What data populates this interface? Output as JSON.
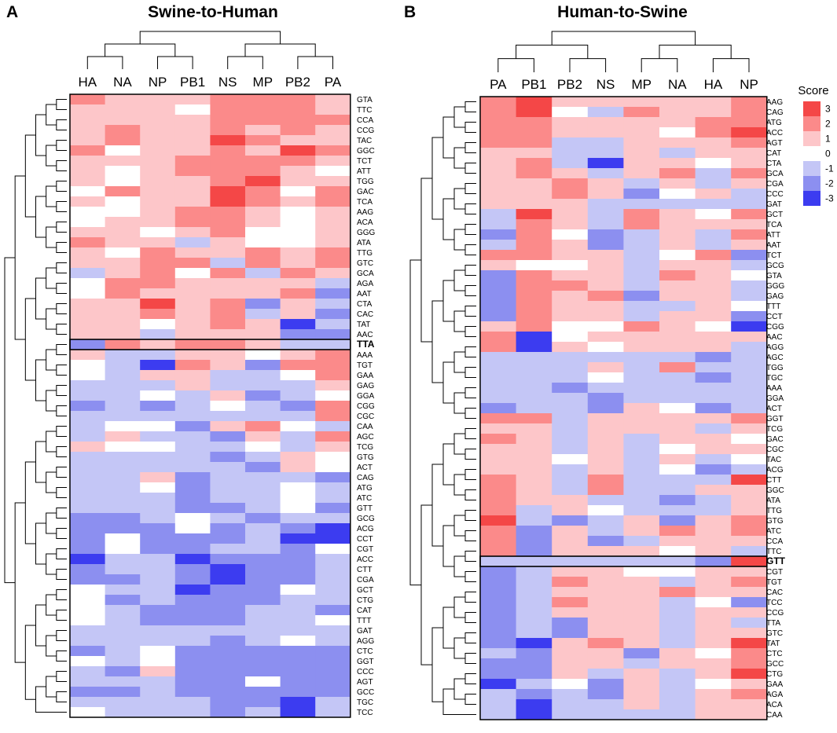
{
  "colors": {
    "pos3": "#f44747",
    "pos2": "#fb8a8a",
    "pos1": "#fdc6c9",
    "zero": "#ffffff",
    "neg1": "#c4c6f6",
    "neg2": "#8c8ff0",
    "neg3": "#3c3cf0",
    "border": "#000000",
    "tree": "#000000"
  },
  "chart_data": [
    {
      "type": "heatmap",
      "panel_label": "A",
      "title": "Swine-to-Human",
      "columns": [
        "HA",
        "NA",
        "NP",
        "PB1",
        "NS",
        "MP",
        "PB2",
        "PA"
      ],
      "highlight": "TTA",
      "rows": [
        "GTA",
        "TTC",
        "CCA",
        "CCG",
        "TAC",
        "GGC",
        "TCT",
        "ATT",
        "TGG",
        "GAC",
        "TCA",
        "AAG",
        "ACA",
        "GGG",
        "ATA",
        "TTG",
        "GTC",
        "GCA",
        "AGA",
        "AAT",
        "CTA",
        "CAC",
        "TAT",
        "AAC",
        "TTA",
        "AAA",
        "TGT",
        "GAA",
        "GAG",
        "GGA",
        "CGG",
        "CGC",
        "CAA",
        "AGC",
        "TCG",
        "GTG",
        "ACT",
        "CAG",
        "ATG",
        "ATC",
        "GTT",
        "GCG",
        "ACG",
        "CCT",
        "CGT",
        "ACC",
        "CTT",
        "CGA",
        "GCT",
        "CTG",
        "CAT",
        "TTT",
        "GAT",
        "AGG",
        "CTC",
        "GGT",
        "CCC",
        "AGT",
        "GCC",
        "TGC",
        "TCC"
      ],
      "values": [
        [
          2,
          1,
          1,
          1,
          2,
          2,
          2,
          1
        ],
        [
          1,
          1,
          1,
          0,
          2,
          2,
          2,
          1
        ],
        [
          1,
          1,
          1,
          1,
          2,
          2,
          2,
          2
        ],
        [
          1,
          2,
          1,
          1,
          2,
          1,
          2,
          1
        ],
        [
          1,
          2,
          1,
          1,
          3,
          2,
          1,
          1
        ],
        [
          2,
          0,
          1,
          1,
          2,
          1,
          3,
          2
        ],
        [
          1,
          1,
          1,
          2,
          2,
          2,
          2,
          1
        ],
        [
          1,
          0,
          1,
          2,
          2,
          2,
          1,
          0
        ],
        [
          1,
          0,
          1,
          1,
          2,
          3,
          1,
          1
        ],
        [
          0,
          2,
          1,
          1,
          3,
          2,
          0,
          2
        ],
        [
          1,
          0,
          1,
          1,
          3,
          2,
          1,
          2
        ],
        [
          0,
          0,
          1,
          2,
          2,
          1,
          0,
          1
        ],
        [
          0,
          1,
          1,
          2,
          2,
          1,
          0,
          1
        ],
        [
          1,
          1,
          0,
          1,
          2,
          0,
          0,
          1
        ],
        [
          2,
          1,
          1,
          -1,
          1,
          0,
          0,
          1
        ],
        [
          1,
          0,
          2,
          1,
          1,
          2,
          1,
          2
        ],
        [
          1,
          1,
          2,
          2,
          -1,
          2,
          1,
          2
        ],
        [
          -1,
          1,
          2,
          0,
          2,
          -1,
          2,
          1
        ],
        [
          0,
          2,
          2,
          1,
          1,
          1,
          1,
          -1
        ],
        [
          0,
          2,
          1,
          1,
          1,
          1,
          2,
          -2
        ],
        [
          1,
          1,
          3,
          1,
          2,
          -2,
          1,
          -1
        ],
        [
          1,
          1,
          2,
          1,
          2,
          -1,
          1,
          -2
        ],
        [
          1,
          1,
          0,
          1,
          2,
          1,
          -3,
          -1
        ],
        [
          1,
          1,
          -1,
          1,
          1,
          1,
          -2,
          -2
        ],
        [
          -2,
          2,
          1,
          2,
          2,
          1,
          -1,
          -1
        ],
        [
          1,
          -1,
          -1,
          1,
          1,
          0,
          1,
          2
        ],
        [
          0,
          -1,
          -3,
          2,
          1,
          -2,
          2,
          2
        ],
        [
          0,
          -1,
          1,
          1,
          -1,
          -1,
          0,
          2
        ],
        [
          -1,
          -1,
          -1,
          1,
          -1,
          -1,
          -1,
          1
        ],
        [
          -1,
          -1,
          0,
          -1,
          1,
          -2,
          -1,
          0
        ],
        [
          -2,
          -1,
          -2,
          -1,
          0,
          -1,
          -2,
          2
        ],
        [
          -1,
          -1,
          -1,
          -1,
          -1,
          -1,
          -1,
          2
        ],
        [
          -1,
          0,
          0,
          -2,
          1,
          2,
          0,
          -1
        ],
        [
          -1,
          1,
          -1,
          -1,
          -2,
          1,
          -1,
          2
        ],
        [
          1,
          0,
          0,
          -1,
          -1,
          0,
          -1,
          1
        ],
        [
          -1,
          -1,
          -1,
          -1,
          -2,
          -1,
          1,
          0
        ],
        [
          -1,
          -1,
          -1,
          -1,
          -1,
          -2,
          1,
          0
        ],
        [
          -1,
          -1,
          1,
          -2,
          -1,
          -1,
          -1,
          -2
        ],
        [
          -1,
          -1,
          0,
          -2,
          -1,
          -1,
          0,
          -1
        ],
        [
          -1,
          -1,
          -1,
          -2,
          -1,
          -1,
          0,
          -1
        ],
        [
          -1,
          -1,
          -1,
          -2,
          -2,
          -1,
          0,
          -2
        ],
        [
          -2,
          -2,
          -1,
          0,
          -1,
          -2,
          -1,
          -1
        ],
        [
          -2,
          -2,
          -2,
          0,
          -2,
          -1,
          -2,
          -3
        ],
        [
          -2,
          0,
          -2,
          -2,
          -2,
          -1,
          -3,
          -3
        ],
        [
          -2,
          0,
          -2,
          -2,
          -1,
          -1,
          -2,
          0
        ],
        [
          -3,
          -1,
          -1,
          -3,
          -2,
          -2,
          -2,
          -1
        ],
        [
          -2,
          -1,
          -1,
          -2,
          -3,
          -2,
          -2,
          -1
        ],
        [
          -2,
          -2,
          -1,
          -2,
          -3,
          -2,
          -2,
          -1
        ],
        [
          0,
          -1,
          -1,
          -3,
          -2,
          -2,
          0,
          -1
        ],
        [
          0,
          -2,
          -1,
          -2,
          -2,
          -2,
          -1,
          -1
        ],
        [
          0,
          -1,
          -2,
          -2,
          -2,
          -1,
          -1,
          -2
        ],
        [
          0,
          -1,
          -2,
          -2,
          -2,
          -1,
          -1,
          0
        ],
        [
          -1,
          -1,
          -1,
          -1,
          -1,
          -1,
          -1,
          -1
        ],
        [
          -1,
          -1,
          -1,
          -1,
          -2,
          -1,
          0,
          -1
        ],
        [
          -2,
          -1,
          0,
          -2,
          -2,
          -2,
          -2,
          -2
        ],
        [
          0,
          -1,
          0,
          -2,
          -2,
          -2,
          -2,
          -2
        ],
        [
          -1,
          -2,
          1,
          -2,
          -2,
          -2,
          -2,
          -2
        ],
        [
          -1,
          -1,
          -1,
          -2,
          -2,
          0,
          -2,
          -2
        ],
        [
          -2,
          -2,
          -1,
          -2,
          -2,
          -2,
          -2,
          -2
        ],
        [
          -1,
          -1,
          -1,
          -1,
          -2,
          -2,
          -3,
          -1
        ],
        [
          0,
          -1,
          -1,
          -1,
          -2,
          -1,
          -3,
          -1
        ]
      ]
    },
    {
      "type": "heatmap",
      "panel_label": "B",
      "title": "Human-to-Swine",
      "columns": [
        "PA",
        "PB1",
        "PB2",
        "NS",
        "MP",
        "NA",
        "HA",
        "NP"
      ],
      "highlight": "GTT",
      "legend_title": "Score",
      "legend_values": [
        3,
        2,
        1,
        0,
        -1,
        -2,
        -3
      ],
      "rows": [
        "AAG",
        "CAG",
        "ATG",
        "ACC",
        "AGT",
        "CAT",
        "CTA",
        "GCA",
        "CGA",
        "CCC",
        "GAT",
        "GCT",
        "TCA",
        "ATT",
        "AAT",
        "TCT",
        "GCG",
        "GTA",
        "GGG",
        "GAG",
        "TTT",
        "CCT",
        "CGG",
        "AAC",
        "AGG",
        "AGC",
        "TGG",
        "TGC",
        "AAA",
        "GGA",
        "ACT",
        "GGT",
        "TCG",
        "GAC",
        "CGC",
        "TAC",
        "ACG",
        "CTT",
        "GGC",
        "ATA",
        "TTG",
        "GTG",
        "ATC",
        "CCA",
        "TTC",
        "GTT",
        "CGT",
        "TGT",
        "CAC",
        "TCC",
        "CCG",
        "TTA",
        "GTC",
        "TAT",
        "CTC",
        "GCC",
        "CTG",
        "GAA",
        "AGA",
        "ACA",
        "CAA"
      ],
      "values": [
        [
          2,
          3,
          1,
          1,
          1,
          1,
          1,
          2
        ],
        [
          2,
          3,
          0,
          -1,
          2,
          1,
          1,
          2
        ],
        [
          2,
          2,
          1,
          1,
          1,
          1,
          2,
          2
        ],
        [
          2,
          2,
          1,
          1,
          1,
          0,
          2,
          3
        ],
        [
          2,
          2,
          -1,
          -1,
          1,
          1,
          1,
          2
        ],
        [
          1,
          1,
          -1,
          -1,
          1,
          -1,
          1,
          1
        ],
        [
          1,
          2,
          -1,
          -3,
          1,
          1,
          0,
          1
        ],
        [
          1,
          2,
          1,
          -1,
          1,
          2,
          -1,
          2
        ],
        [
          1,
          1,
          2,
          1,
          -1,
          1,
          -1,
          1
        ],
        [
          1,
          1,
          2,
          1,
          -2,
          0,
          1,
          -1
        ],
        [
          1,
          1,
          1,
          -1,
          -1,
          -1,
          -1,
          -1
        ],
        [
          -1,
          3,
          1,
          -1,
          2,
          1,
          0,
          2
        ],
        [
          -1,
          2,
          1,
          -1,
          2,
          1,
          1,
          1
        ],
        [
          -2,
          2,
          0,
          -2,
          -1,
          1,
          -1,
          2
        ],
        [
          -1,
          2,
          1,
          -2,
          -1,
          1,
          -1,
          1
        ],
        [
          2,
          2,
          1,
          1,
          -1,
          0,
          2,
          -2
        ],
        [
          1,
          0,
          0,
          1,
          -1,
          1,
          1,
          -1
        ],
        [
          -2,
          2,
          1,
          1,
          -1,
          2,
          1,
          0
        ],
        [
          -2,
          2,
          2,
          1,
          -1,
          1,
          1,
          -1
        ],
        [
          -2,
          2,
          1,
          2,
          -2,
          1,
          1,
          -1
        ],
        [
          -2,
          2,
          1,
          1,
          -1,
          -1,
          1,
          0
        ],
        [
          -2,
          2,
          1,
          1,
          -1,
          1,
          1,
          -2
        ],
        [
          1,
          2,
          0,
          0,
          2,
          1,
          0,
          -3
        ],
        [
          2,
          -3,
          0,
          1,
          1,
          1,
          1,
          1
        ],
        [
          2,
          -3,
          1,
          0,
          1,
          1,
          1,
          -1
        ],
        [
          -1,
          -1,
          -1,
          -1,
          -1,
          -1,
          -2,
          -1
        ],
        [
          -1,
          -1,
          -1,
          1,
          -1,
          2,
          -1,
          -1
        ],
        [
          -1,
          -1,
          -1,
          0,
          -1,
          -1,
          -2,
          -1
        ],
        [
          -1,
          -1,
          -2,
          -1,
          -1,
          -1,
          -1,
          -1
        ],
        [
          -1,
          -1,
          -1,
          -2,
          -1,
          -1,
          -1,
          -1
        ],
        [
          -2,
          -1,
          -1,
          -2,
          1,
          0,
          -2,
          -1
        ],
        [
          2,
          2,
          -1,
          1,
          1,
          1,
          1,
          2
        ],
        [
          1,
          1,
          -1,
          1,
          1,
          1,
          -1,
          1
        ],
        [
          2,
          1,
          -1,
          1,
          -1,
          1,
          1,
          0
        ],
        [
          1,
          1,
          -1,
          1,
          -1,
          0,
          1,
          1
        ],
        [
          1,
          1,
          0,
          1,
          -1,
          1,
          -1,
          0
        ],
        [
          1,
          1,
          -1,
          1,
          -1,
          0,
          -2,
          -1
        ],
        [
          2,
          1,
          -1,
          2,
          -1,
          -1,
          -1,
          3
        ],
        [
          2,
          1,
          -1,
          2,
          -1,
          -1,
          1,
          1
        ],
        [
          2,
          1,
          1,
          -1,
          -1,
          -2,
          -1,
          1
        ],
        [
          2,
          -1,
          1,
          0,
          -1,
          -1,
          -1,
          1
        ],
        [
          3,
          -1,
          -2,
          -1,
          1,
          -2,
          1,
          2
        ],
        [
          2,
          -2,
          1,
          -1,
          1,
          2,
          1,
          2
        ],
        [
          2,
          -2,
          1,
          -2,
          -1,
          1,
          1,
          1
        ],
        [
          2,
          -2,
          1,
          1,
          1,
          0,
          1,
          -1
        ],
        [
          -1,
          -1,
          -1,
          -1,
          -1,
          -1,
          -2,
          3
        ],
        [
          -2,
          -1,
          1,
          1,
          0,
          0,
          1,
          1
        ],
        [
          -2,
          -1,
          2,
          1,
          1,
          -1,
          1,
          2
        ],
        [
          -2,
          -1,
          1,
          1,
          1,
          2,
          1,
          1
        ],
        [
          -2,
          -1,
          2,
          1,
          1,
          -1,
          0,
          -2
        ],
        [
          -2,
          -1,
          1,
          1,
          1,
          -1,
          1,
          1
        ],
        [
          -2,
          -1,
          -2,
          1,
          1,
          -1,
          1,
          -1
        ],
        [
          -2,
          -1,
          -2,
          1,
          1,
          -1,
          1,
          1
        ],
        [
          -2,
          -3,
          1,
          2,
          1,
          -1,
          1,
          3
        ],
        [
          -1,
          -2,
          1,
          1,
          -2,
          1,
          0,
          2
        ],
        [
          -2,
          -2,
          1,
          1,
          -1,
          1,
          1,
          2
        ],
        [
          -2,
          -2,
          1,
          -1,
          1,
          -1,
          1,
          3
        ],
        [
          -3,
          -1,
          0,
          -2,
          1,
          -1,
          0,
          1
        ],
        [
          -1,
          -2,
          -1,
          -2,
          1,
          -1,
          1,
          2
        ],
        [
          -1,
          -3,
          -1,
          -1,
          1,
          -1,
          1,
          1
        ],
        [
          -1,
          -3,
          -1,
          -1,
          -1,
          -1,
          1,
          1
        ]
      ]
    }
  ]
}
